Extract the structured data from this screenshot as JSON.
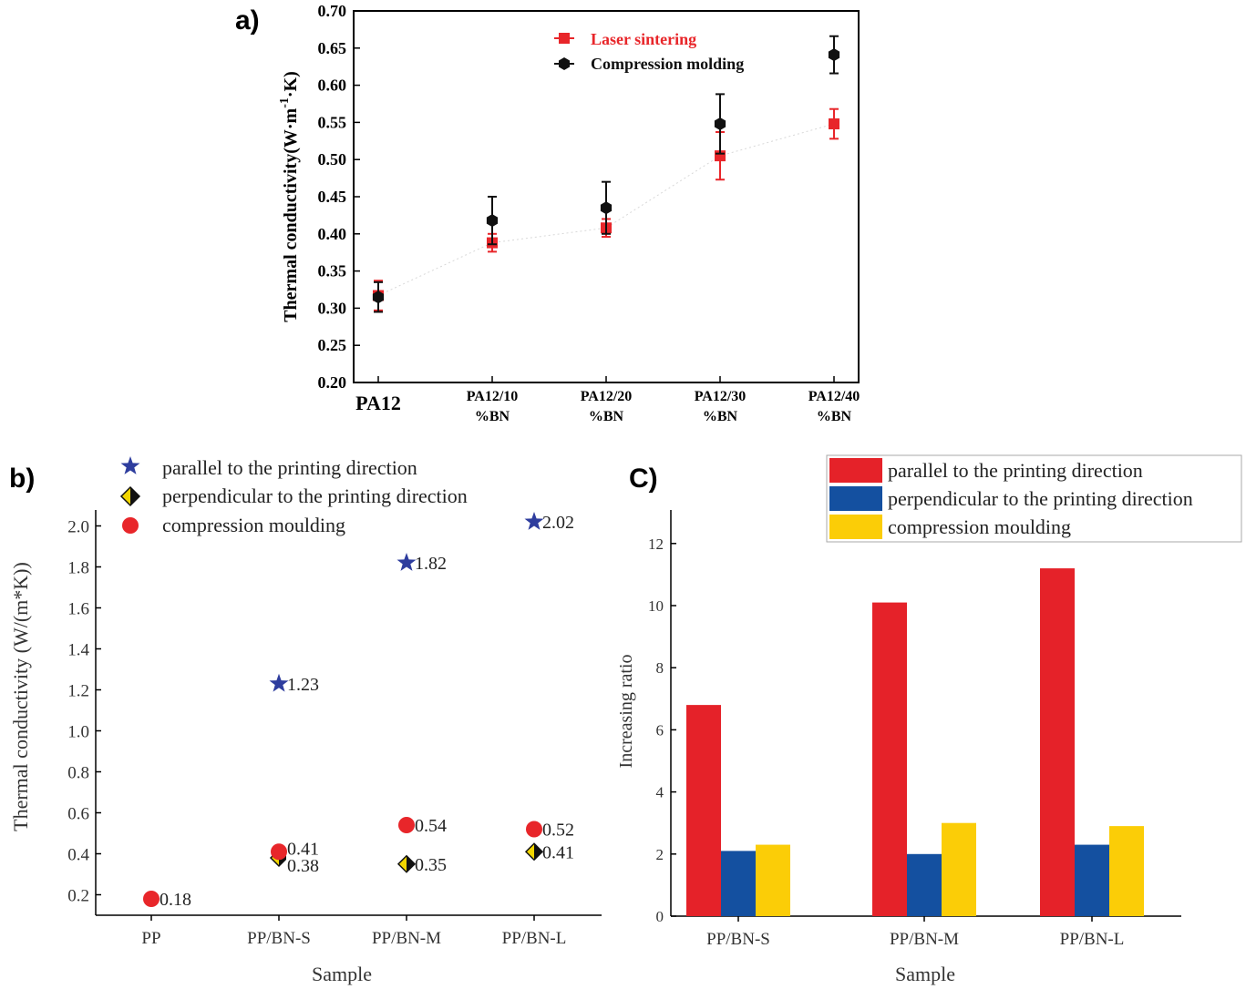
{
  "colors": {
    "laser": "#e8262a",
    "compression": "#111111",
    "parallel_star": "#2e3d9e",
    "perp_fill": "#f2d600",
    "moulding_dot": "#e8262a",
    "bar_red": "#e52229",
    "bar_blue": "#1450a0",
    "bar_yellow": "#fbcd07"
  },
  "chart_data": [
    {
      "panel": "a)",
      "type": "scatter",
      "ylabel_main": "Thermal conductivity(W·m",
      "ylabel_sup": "-1",
      "ylabel_mid": "·K",
      "ylabel_tail": ")",
      "ylim": [
        0.2,
        0.7
      ],
      "yticks": [
        "0.20",
        "0.25",
        "0.30",
        "0.35",
        "0.40",
        "0.45",
        "0.50",
        "0.55",
        "0.60",
        "0.65",
        "0.70"
      ],
      "categories": [
        {
          "line1": "PA12",
          "line2": ""
        },
        {
          "line1": "PA12/10",
          "line2": "%BN"
        },
        {
          "line1": "PA12/20",
          "line2": "%BN"
        },
        {
          "line1": "PA12/30",
          "line2": "%BN"
        },
        {
          "line1": "PA12/40",
          "line2": "%BN"
        }
      ],
      "legend_position": "top-right",
      "series": [
        {
          "name": "Laser sintering",
          "values": [
            0.317,
            0.388,
            0.408,
            0.505,
            0.548
          ],
          "errors": [
            0.02,
            0.012,
            0.012,
            0.032,
            0.02
          ]
        },
        {
          "name": "Compression molding",
          "values": [
            0.315,
            0.418,
            0.435,
            0.548,
            0.641
          ],
          "errors": [
            0.02,
            0.032,
            0.035,
            0.04,
            0.025
          ]
        }
      ]
    },
    {
      "panel": "b)",
      "type": "scatter",
      "xlabel": "Sample",
      "ylabel": "Thermal conductivity (W/(m*K))",
      "ylim": [
        0.1,
        2.1
      ],
      "yticks": [
        "0.2",
        "0.4",
        "0.6",
        "0.8",
        "1.0",
        "1.2",
        "1.4",
        "1.6",
        "1.8",
        "2.0"
      ],
      "categories": [
        "PP",
        "PP/BN-S",
        "PP/BN-M",
        "PP/BN-L"
      ],
      "legend_position": "top-left",
      "series": [
        {
          "name": "parallel to the printing direction",
          "points": [
            {
              "cat": 1,
              "value": 1.23,
              "label": "1.23"
            },
            {
              "cat": 2,
              "value": 1.82,
              "label": "1.82"
            },
            {
              "cat": 3,
              "value": 2.02,
              "label": "2.02"
            }
          ]
        },
        {
          "name": "perpendicular to the printing direction",
          "points": [
            {
              "cat": 1,
              "value": 0.38,
              "label": "0.38"
            },
            {
              "cat": 2,
              "value": 0.35,
              "label": "0.35"
            },
            {
              "cat": 3,
              "value": 0.41,
              "label": "0.41"
            }
          ]
        },
        {
          "name": "compression moulding",
          "points": [
            {
              "cat": 0,
              "value": 0.18,
              "label": "0.18"
            },
            {
              "cat": 1,
              "value": 0.41,
              "label": "0.41"
            },
            {
              "cat": 2,
              "value": 0.54,
              "label": "0.54"
            },
            {
              "cat": 3,
              "value": 0.52,
              "label": "0.52"
            }
          ]
        }
      ]
    },
    {
      "panel": "C)",
      "type": "bar",
      "xlabel": "Sample",
      "ylabel": "Increasing ratio",
      "ylim": [
        0,
        13
      ],
      "yticks": [
        "0",
        "2",
        "4",
        "6",
        "8",
        "10",
        "12"
      ],
      "categories": [
        "PP/BN-S",
        "PP/BN-M",
        "PP/BN-L"
      ],
      "legend_position": "top-right",
      "series": [
        {
          "name": "parallel to the printing direction",
          "values": [
            6.8,
            10.1,
            11.2
          ]
        },
        {
          "name": "perpendicular to the printing direction",
          "values": [
            2.1,
            2.0,
            2.3
          ]
        },
        {
          "name": "compression moulding",
          "values": [
            2.3,
            3.0,
            2.9
          ]
        }
      ]
    }
  ]
}
